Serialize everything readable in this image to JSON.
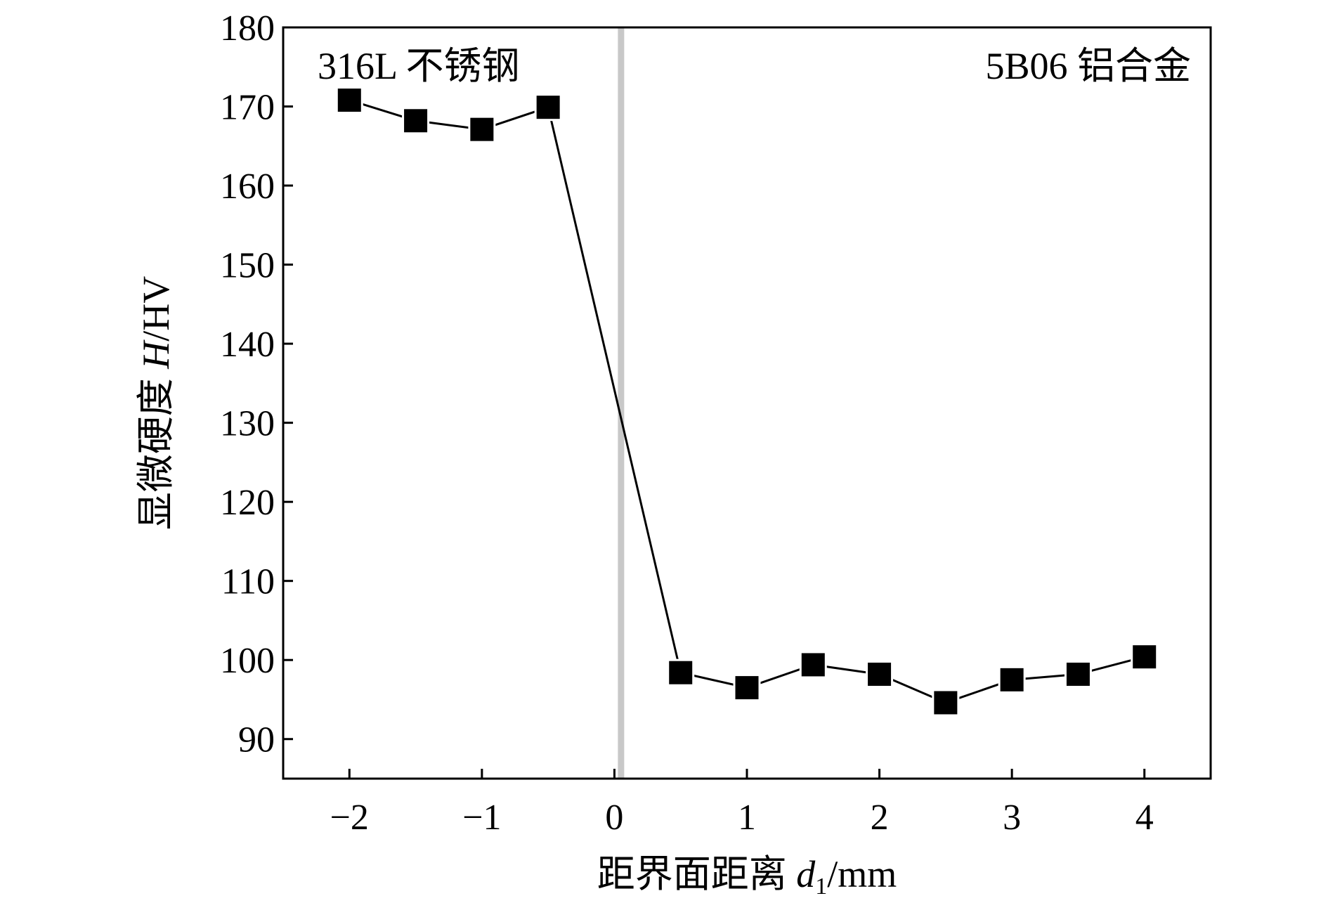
{
  "chart_data": {
    "type": "line",
    "x": [
      -2,
      -1.5,
      -1,
      -0.5,
      0.5,
      1,
      1.5,
      2,
      2.5,
      3,
      3.5,
      4
    ],
    "series": [
      {
        "values": [
          170.8,
          168.2,
          167.1,
          169.9,
          98.4,
          96.5,
          99.4,
          98.2,
          94.6,
          97.5,
          98.2,
          100.4
        ]
      }
    ],
    "xlim": [
      -2.5,
      4.5
    ],
    "ylim": [
      85,
      180
    ],
    "xticks": [
      -2,
      -1,
      0,
      1,
      2,
      3,
      4
    ],
    "xtick_labels": [
      "−2",
      "−1",
      "0",
      "1",
      "2",
      "3",
      "4"
    ],
    "yticks": [
      90,
      100,
      110,
      120,
      130,
      140,
      150,
      160,
      170,
      180
    ],
    "ytick_labels": [
      "90",
      "100",
      "110",
      "120",
      "130",
      "140",
      "150",
      "160",
      "170",
      "180"
    ],
    "xlabel": {
      "prefix": "距界面距离 ",
      "var": "d",
      "sub": "1",
      "unit": "/mm"
    },
    "ylabel": {
      "prefix": "显微硬度 ",
      "var": "H",
      "unit": "/HV"
    },
    "interface_x": 0.05,
    "annotations": [
      {
        "text": "316L 不锈钢",
        "position": "top-left"
      },
      {
        "text": "5B06 铝合金",
        "position": "top-right"
      }
    ],
    "marker": "square",
    "colors": {
      "line": "#000000",
      "marker": "#000000",
      "interface": "#c8c8c8"
    }
  }
}
